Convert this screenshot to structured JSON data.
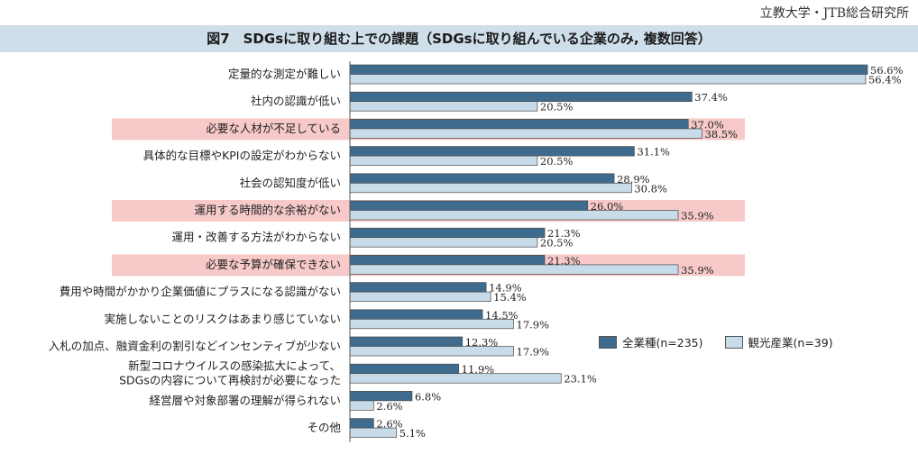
{
  "source": "立教大学・JTB総合研究所",
  "title": "図7　SDGsに取り組む上での課題（SDGsに取り組んでいる企業のみ, 複数回答）",
  "colors": {
    "series1": "#3f6c8e",
    "series2": "#c7dbe9",
    "highlight": "#f7c9c9",
    "title_band": "#cfdfea"
  },
  "chart_data": {
    "type": "bar",
    "orientation": "horizontal",
    "categories": [
      "定量的な測定が難しい",
      "社内の認識が低い",
      "必要な人材が不足している",
      "具体的な目標やKPIの設定がわからない",
      "社会の認知度が低い",
      "運用する時間的な余裕がない",
      "運用・改善する方法がわからない",
      "必要な予算が確保できない",
      "費用や時間がかかり企業価値にプラスになる認識がない",
      "実施しないことのリスクはあまり感じていない",
      "入札の加点、融資金利の割引などインセンティブが少ない",
      "新型コロナウイルスの感染拡大によって、|SDGsの内容について再検討が必要になった",
      "経営層や対象部署の理解が得られない",
      "その他"
    ],
    "highlighted": [
      false,
      false,
      true,
      false,
      false,
      true,
      false,
      true,
      false,
      false,
      false,
      false,
      false,
      false
    ],
    "series": [
      {
        "name": "全業種(n=235)",
        "values": [
          56.6,
          37.4,
          37.0,
          31.1,
          28.9,
          26.0,
          21.3,
          21.3,
          14.9,
          14.5,
          12.3,
          11.9,
          6.8,
          2.6
        ]
      },
      {
        "name": "観光産業(n=39)",
        "values": [
          56.4,
          20.5,
          38.5,
          20.5,
          30.8,
          35.9,
          20.5,
          35.9,
          15.4,
          17.9,
          17.9,
          23.1,
          2.6,
          5.1
        ]
      }
    ],
    "value_suffix": "%",
    "xlim": [
      0,
      60
    ],
    "legend_position": "bottom-right",
    "grid": false
  }
}
